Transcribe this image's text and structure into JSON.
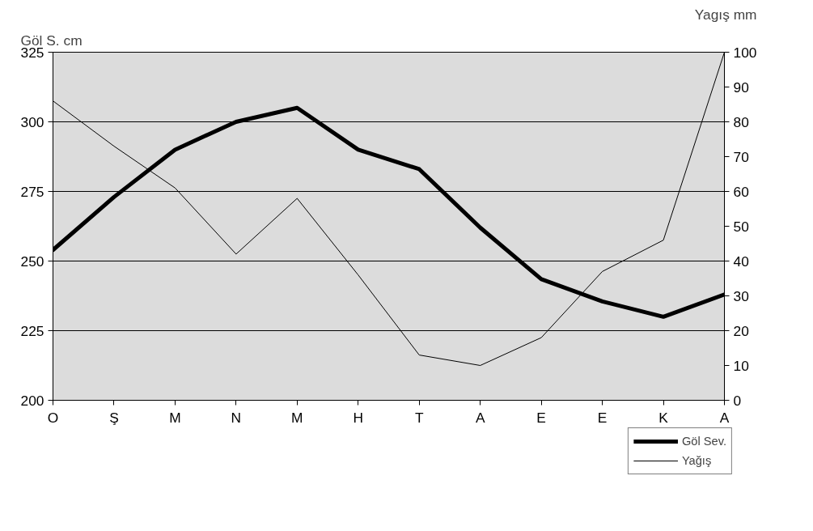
{
  "chart_data": {
    "type": "line",
    "categories": [
      "O",
      "Ş",
      "M",
      "N",
      "M",
      "H",
      "T",
      "A",
      "E",
      "E",
      "K",
      "A"
    ],
    "ylabel": "Göl S. cm",
    "y2label": "Yagış mm",
    "ylim": [
      200,
      325
    ],
    "yticks": [
      200,
      225,
      250,
      275,
      300,
      325
    ],
    "y2lim": [
      0,
      100
    ],
    "y2ticks": [
      0,
      10,
      20,
      30,
      40,
      50,
      60,
      70,
      80,
      90,
      100
    ],
    "grid": "y",
    "legend": "bottom right",
    "series": [
      {
        "name": "Göl Sev.",
        "color": "#000000",
        "values": [
          254,
          273,
          290,
          300,
          305,
          290,
          283,
          262,
          243.5,
          235.5,
          230,
          238
        ]
      },
      {
        "name": "Yağış",
        "color": "#000000",
        "axis": "y2",
        "values": [
          86,
          73,
          61,
          42,
          58,
          36,
          13,
          10,
          18,
          37,
          46,
          100
        ]
      }
    ]
  }
}
